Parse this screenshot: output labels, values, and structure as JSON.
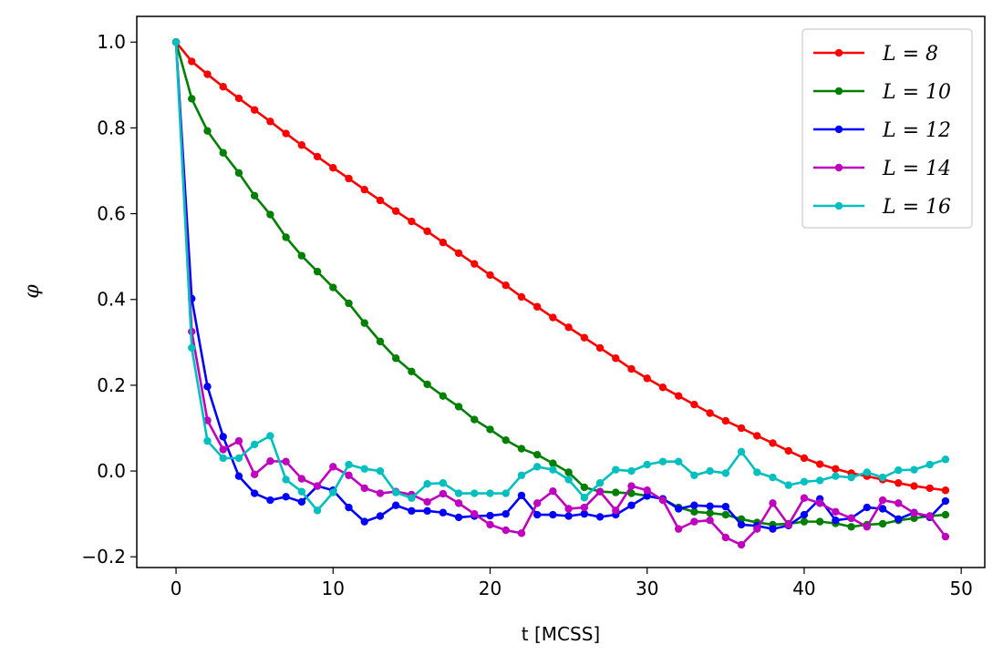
{
  "chart_data": {
    "type": "line",
    "xlabel": "t [MCSS]",
    "ylabel": "φ",
    "xlim": [
      -2.5,
      51.5
    ],
    "ylim": [
      -0.225,
      1.06
    ],
    "xticks": [
      0,
      10,
      20,
      30,
      40,
      50
    ],
    "yticks": [
      -0.2,
      0.0,
      0.2,
      0.4,
      0.6,
      0.8,
      1.0
    ],
    "ytick_labels": [
      "−0.2",
      "0.0",
      "0.2",
      "0.4",
      "0.6",
      "0.8",
      "1.0"
    ],
    "grid": false,
    "legend_position": "top-right",
    "marker": "circle",
    "x": [
      0,
      1,
      2,
      3,
      4,
      5,
      6,
      7,
      8,
      9,
      10,
      11,
      12,
      13,
      14,
      15,
      16,
      17,
      18,
      19,
      20,
      21,
      22,
      23,
      24,
      25,
      26,
      27,
      28,
      29,
      30,
      31,
      32,
      33,
      34,
      35,
      36,
      37,
      38,
      39,
      40,
      41,
      42,
      43,
      44,
      45,
      46,
      47,
      48,
      49
    ],
    "series": [
      {
        "name": "L = 8",
        "color": "#ff0000",
        "values": [
          1.0,
          0.955,
          0.925,
          0.896,
          0.869,
          0.842,
          0.815,
          0.787,
          0.76,
          0.733,
          0.707,
          0.682,
          0.656,
          0.631,
          0.606,
          0.582,
          0.559,
          0.533,
          0.508,
          0.483,
          0.457,
          0.433,
          0.406,
          0.383,
          0.358,
          0.335,
          0.311,
          0.287,
          0.263,
          0.238,
          0.216,
          0.195,
          0.175,
          0.155,
          0.135,
          0.117,
          0.1,
          0.082,
          0.065,
          0.047,
          0.03,
          0.016,
          0.005,
          -0.005,
          -0.012,
          -0.02,
          -0.028,
          -0.035,
          -0.04,
          -0.045
        ]
      },
      {
        "name": "L = 10",
        "color": "#008000",
        "values": [
          1.0,
          0.868,
          0.793,
          0.742,
          0.695,
          0.642,
          0.598,
          0.545,
          0.502,
          0.465,
          0.428,
          0.391,
          0.345,
          0.302,
          0.263,
          0.232,
          0.202,
          0.175,
          0.15,
          0.12,
          0.097,
          0.072,
          0.052,
          0.038,
          0.018,
          -0.003,
          -0.038,
          -0.048,
          -0.05,
          -0.052,
          -0.058,
          -0.065,
          -0.085,
          -0.095,
          -0.098,
          -0.102,
          -0.112,
          -0.12,
          -0.125,
          -0.123,
          -0.118,
          -0.118,
          -0.122,
          -0.13,
          -0.125,
          -0.123,
          -0.115,
          -0.11,
          -0.105,
          -0.102
        ]
      },
      {
        "name": "L = 12",
        "color": "#0000ff",
        "values": [
          1.0,
          0.402,
          0.197,
          0.08,
          -0.012,
          -0.052,
          -0.068,
          -0.06,
          -0.072,
          -0.035,
          -0.045,
          -0.085,
          -0.118,
          -0.105,
          -0.08,
          -0.093,
          -0.093,
          -0.097,
          -0.108,
          -0.105,
          -0.104,
          -0.1,
          -0.057,
          -0.102,
          -0.102,
          -0.105,
          -0.1,
          -0.107,
          -0.102,
          -0.08,
          -0.058,
          -0.065,
          -0.088,
          -0.08,
          -0.082,
          -0.083,
          -0.125,
          -0.128,
          -0.135,
          -0.127,
          -0.102,
          -0.065,
          -0.115,
          -0.11,
          -0.085,
          -0.088,
          -0.112,
          -0.097,
          -0.108,
          -0.07
        ]
      },
      {
        "name": "L = 14",
        "color": "#bf00bf",
        "values": [
          1.0,
          0.325,
          0.118,
          0.05,
          0.07,
          -0.008,
          0.023,
          0.022,
          -0.018,
          -0.035,
          0.01,
          -0.01,
          -0.04,
          -0.052,
          -0.048,
          -0.055,
          -0.072,
          -0.053,
          -0.075,
          -0.1,
          -0.125,
          -0.138,
          -0.145,
          -0.075,
          -0.047,
          -0.088,
          -0.085,
          -0.048,
          -0.092,
          -0.035,
          -0.045,
          -0.068,
          -0.135,
          -0.118,
          -0.115,
          -0.155,
          -0.172,
          -0.135,
          -0.075,
          -0.125,
          -0.063,
          -0.075,
          -0.095,
          -0.11,
          -0.13,
          -0.068,
          -0.075,
          -0.098,
          -0.105,
          -0.153
        ]
      },
      {
        "name": "L = 16",
        "color": "#00bfbf",
        "values": [
          1.0,
          0.287,
          0.07,
          0.03,
          0.03,
          0.062,
          0.082,
          -0.02,
          -0.048,
          -0.092,
          -0.05,
          0.015,
          0.005,
          0.0,
          -0.05,
          -0.063,
          -0.03,
          -0.028,
          -0.052,
          -0.052,
          -0.052,
          -0.052,
          -0.01,
          0.01,
          0.003,
          -0.02,
          -0.062,
          -0.028,
          0.003,
          0.0,
          0.015,
          0.022,
          0.022,
          -0.01,
          0.0,
          -0.005,
          0.045,
          -0.003,
          -0.015,
          -0.033,
          -0.025,
          -0.022,
          -0.012,
          -0.015,
          -0.003,
          -0.015,
          0.002,
          0.003,
          0.015,
          0.027
        ]
      }
    ]
  }
}
